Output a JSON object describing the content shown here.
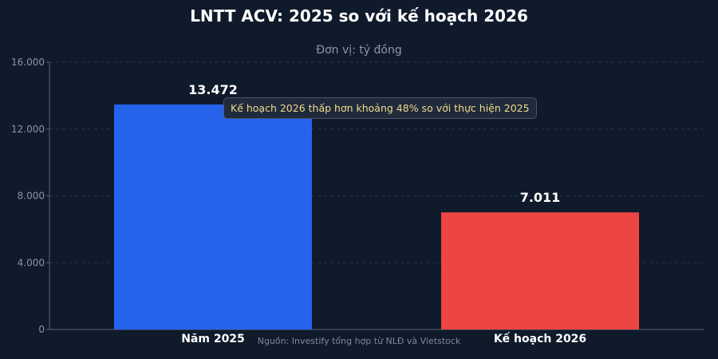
{
  "chart_data": {
    "type": "bar",
    "title": "LNTT ACV: 2025 so với kế hoạch 2026",
    "subtitle": "Đơn vị: tỷ đồng",
    "categories": [
      "Năm 2025",
      "Kế hoạch 2026"
    ],
    "values": [
      13472,
      7011
    ],
    "value_labels": [
      "13.472",
      "7.011"
    ],
    "colors": [
      "#2563eb",
      "#ef4444"
    ],
    "ylim": [
      0,
      16000
    ],
    "yticks": [
      0,
      4000,
      8000,
      12000,
      16000
    ],
    "ytick_labels": [
      "0",
      "4.000",
      "8.000",
      "12.000",
      "16.000"
    ],
    "grid": true,
    "annotation": "Kế hoạch 2026 thấp hơn khoảng 48% so với thực hiện 2025",
    "source": "Nguồn: Investify tổng hợp từ NLĐ và Vietstock"
  }
}
